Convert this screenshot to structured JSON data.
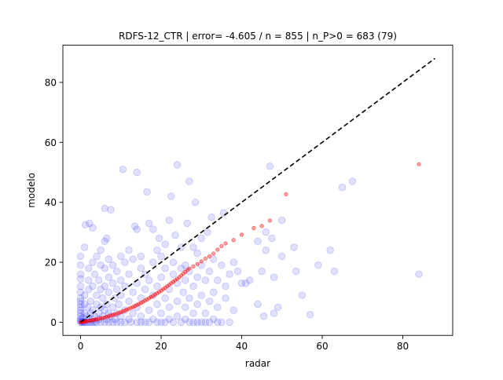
{
  "chart_data": {
    "type": "scatter",
    "title": "RDFS-12_CTR | error= -4.605 / n = 855 | n_P>0 = 683 (79)",
    "xlabel": "radar",
    "ylabel": "modelo",
    "xlim": [
      -4.4,
      92.4
    ],
    "ylim": [
      -4.4,
      92.4
    ],
    "xticks": [
      0,
      20,
      40,
      60,
      80
    ],
    "yticks": [
      0,
      20,
      40,
      60,
      80
    ],
    "grid": false,
    "legend": "none",
    "reference_line": {
      "x": [
        0,
        88
      ],
      "y": [
        0,
        88
      ],
      "color": "#000000",
      "style": "dashed"
    },
    "series": [
      {
        "color": "#0000ff",
        "alpha": 0.12,
        "marker": "circle",
        "points": [
          [
            0,
            0
          ],
          [
            0,
            0.5
          ],
          [
            0,
            1
          ],
          [
            0,
            2
          ],
          [
            0,
            3
          ],
          [
            0,
            4
          ],
          [
            0,
            5
          ],
          [
            0,
            6
          ],
          [
            0,
            7
          ],
          [
            0,
            8
          ],
          [
            0,
            10
          ],
          [
            0,
            12
          ],
          [
            0,
            14.5
          ],
          [
            0,
            16
          ],
          [
            0,
            19
          ],
          [
            0,
            22
          ],
          [
            0.3,
            0
          ],
          [
            0.5,
            0.2
          ],
          [
            0.6,
            1.5
          ],
          [
            0.8,
            0
          ],
          [
            1,
            0
          ],
          [
            1,
            3
          ],
          [
            1,
            6
          ],
          [
            1,
            9
          ],
          [
            1,
            25
          ],
          [
            1.2,
            32.5
          ],
          [
            1.5,
            0
          ],
          [
            1.5,
            2
          ],
          [
            1.8,
            5
          ],
          [
            2,
            0
          ],
          [
            2,
            1
          ],
          [
            2,
            11
          ],
          [
            2,
            14
          ],
          [
            2,
            18
          ],
          [
            2.2,
            33
          ],
          [
            2.5,
            0
          ],
          [
            2.5,
            3
          ],
          [
            2.5,
            7
          ],
          [
            3,
            0
          ],
          [
            3,
            1
          ],
          [
            3,
            4
          ],
          [
            3,
            12
          ],
          [
            3,
            20
          ],
          [
            3,
            31.5
          ],
          [
            3.5,
            0
          ],
          [
            3.5,
            2
          ],
          [
            3.5,
            16
          ],
          [
            4,
            0
          ],
          [
            4,
            6
          ],
          [
            4,
            9
          ],
          [
            4,
            22
          ],
          [
            4.5,
            1
          ],
          [
            4.5,
            3
          ],
          [
            4.5,
            14
          ],
          [
            5,
            0
          ],
          [
            5,
            5
          ],
          [
            5,
            11
          ],
          [
            5,
            19
          ],
          [
            5,
            24
          ],
          [
            5.5,
            2
          ],
          [
            5.5,
            8
          ],
          [
            6,
            0
          ],
          [
            6,
            4
          ],
          [
            6,
            12
          ],
          [
            6,
            18
          ],
          [
            6,
            27
          ],
          [
            6,
            38
          ],
          [
            6.5,
            1
          ],
          [
            6.5,
            6
          ],
          [
            6.5,
            28
          ],
          [
            7,
            0
          ],
          [
            7,
            3
          ],
          [
            7,
            10
          ],
          [
            7,
            15
          ],
          [
            7,
            21
          ],
          [
            7.5,
            37.5
          ],
          [
            7.5,
            2
          ],
          [
            8,
            0
          ],
          [
            8,
            5
          ],
          [
            8,
            13
          ],
          [
            8,
            19
          ],
          [
            8.5,
            8
          ],
          [
            8.5,
            1
          ],
          [
            9,
            0
          ],
          [
            9,
            3
          ],
          [
            9,
            11
          ],
          [
            9,
            17
          ],
          [
            9.5,
            6
          ],
          [
            10,
            0
          ],
          [
            10,
            2
          ],
          [
            10,
            9
          ],
          [
            10,
            14
          ],
          [
            10,
            22
          ],
          [
            10.5,
            51
          ],
          [
            11,
            0
          ],
          [
            11,
            4
          ],
          [
            11,
            12
          ],
          [
            11,
            20
          ],
          [
            12,
            1
          ],
          [
            12,
            7
          ],
          [
            12,
            16
          ],
          [
            12,
            24
          ],
          [
            12.5,
            0
          ],
          [
            13,
            3
          ],
          [
            13,
            10
          ],
          [
            13,
            21
          ],
          [
            13.5,
            32
          ],
          [
            14,
            0
          ],
          [
            14,
            5
          ],
          [
            14,
            13
          ],
          [
            14,
            31
          ],
          [
            14,
            50
          ],
          [
            15,
            0
          ],
          [
            15,
            2
          ],
          [
            15,
            8
          ],
          [
            15,
            18
          ],
          [
            15,
            22
          ],
          [
            16,
            0
          ],
          [
            16,
            11
          ],
          [
            16,
            16
          ],
          [
            16.5,
            43.5
          ],
          [
            17,
            0
          ],
          [
            17,
            4
          ],
          [
            17,
            14
          ],
          [
            17,
            33
          ],
          [
            18,
            1
          ],
          [
            18,
            9
          ],
          [
            18,
            20
          ],
          [
            18,
            31
          ],
          [
            19,
            0
          ],
          [
            19,
            6
          ],
          [
            19,
            12
          ],
          [
            19,
            24
          ],
          [
            19.5,
            28
          ],
          [
            20,
            0
          ],
          [
            20,
            3
          ],
          [
            20,
            15
          ],
          [
            20,
            22
          ],
          [
            21,
            0
          ],
          [
            21,
            8
          ],
          [
            21,
            18
          ],
          [
            21,
            26
          ],
          [
            22,
            1
          ],
          [
            22,
            5
          ],
          [
            22,
            11
          ],
          [
            22,
            34
          ],
          [
            22.5,
            42
          ],
          [
            23,
            0
          ],
          [
            23,
            16
          ],
          [
            23,
            20
          ],
          [
            23.5,
            29
          ],
          [
            24,
            2
          ],
          [
            24,
            7
          ],
          [
            24,
            13
          ],
          [
            24,
            52.5
          ],
          [
            25,
            0
          ],
          [
            25,
            18
          ],
          [
            25,
            25
          ],
          [
            25.5,
            10
          ],
          [
            26,
            1
          ],
          [
            26,
            5
          ],
          [
            26,
            14
          ],
          [
            26,
            19
          ],
          [
            26.5,
            33
          ],
          [
            27,
            0
          ],
          [
            27,
            8
          ],
          [
            27,
            17
          ],
          [
            27,
            47
          ],
          [
            28,
            0
          ],
          [
            28,
            3
          ],
          [
            28,
            12
          ],
          [
            28,
            25
          ],
          [
            28.5,
            40
          ],
          [
            29,
            0
          ],
          [
            29,
            6
          ],
          [
            29,
            15
          ],
          [
            29,
            23
          ],
          [
            30,
            0
          ],
          [
            30,
            9
          ],
          [
            30,
            19
          ],
          [
            30,
            28
          ],
          [
            31,
            0
          ],
          [
            31,
            3
          ],
          [
            31,
            14
          ],
          [
            31.5,
            30
          ],
          [
            32,
            0
          ],
          [
            32,
            7
          ],
          [
            32,
            17
          ],
          [
            32.5,
            35
          ],
          [
            33,
            1
          ],
          [
            33,
            10
          ],
          [
            33,
            21
          ],
          [
            34,
            0
          ],
          [
            34,
            5
          ],
          [
            34,
            14
          ],
          [
            35,
            0
          ],
          [
            35,
            19
          ],
          [
            35.5,
            36.5
          ],
          [
            36,
            8
          ],
          [
            36,
            12
          ],
          [
            37,
            0
          ],
          [
            37,
            16
          ],
          [
            38,
            4
          ],
          [
            38,
            20
          ],
          [
            39,
            17
          ],
          [
            40,
            13
          ],
          [
            41,
            13
          ],
          [
            42,
            14
          ],
          [
            44,
            6
          ],
          [
            44,
            27
          ],
          [
            45,
            17
          ],
          [
            45.5,
            2
          ],
          [
            46,
            30
          ],
          [
            46,
            24
          ],
          [
            47,
            52
          ],
          [
            47.5,
            28
          ],
          [
            48,
            15
          ],
          [
            48,
            3
          ],
          [
            49,
            5
          ],
          [
            50,
            22
          ],
          [
            50,
            34
          ],
          [
            53,
            25
          ],
          [
            53.5,
            17
          ],
          [
            55,
            9
          ],
          [
            57,
            2.5
          ],
          [
            59,
            19
          ],
          [
            62,
            24
          ],
          [
            63,
            17
          ],
          [
            65,
            45
          ],
          [
            67.5,
            47
          ],
          [
            84,
            16
          ]
        ]
      },
      {
        "color": "#ff0000",
        "alpha": 0.35,
        "marker": "circle-small",
        "points": [
          [
            0,
            0
          ],
          [
            0.2,
            0.05
          ],
          [
            0.4,
            0.1
          ],
          [
            0.6,
            0.15
          ],
          [
            0.8,
            0.2
          ],
          [
            1,
            0.25
          ],
          [
            1.3,
            0.3
          ],
          [
            1.6,
            0.35
          ],
          [
            2,
            0.45
          ],
          [
            2.4,
            0.55
          ],
          [
            2.8,
            0.65
          ],
          [
            3.2,
            0.75
          ],
          [
            3.6,
            0.85
          ],
          [
            4,
            0.95
          ],
          [
            4.5,
            1.1
          ],
          [
            5,
            1.25
          ],
          [
            5.5,
            1.4
          ],
          [
            6,
            1.6
          ],
          [
            6.5,
            1.8
          ],
          [
            7,
            2.0
          ],
          [
            7.5,
            2.2
          ],
          [
            8,
            2.4
          ],
          [
            8.5,
            2.6
          ],
          [
            9,
            2.85
          ],
          [
            9.5,
            3.1
          ],
          [
            10,
            3.35
          ],
          [
            10.5,
            3.6
          ],
          [
            11,
            3.9
          ],
          [
            11.5,
            4.2
          ],
          [
            12,
            4.5
          ],
          [
            12.5,
            4.8
          ],
          [
            13,
            5.1
          ],
          [
            13.5,
            5.4
          ],
          [
            14,
            5.75
          ],
          [
            14.5,
            6.1
          ],
          [
            15,
            6.45
          ],
          [
            15.5,
            6.8
          ],
          [
            16,
            7.2
          ],
          [
            16.5,
            7.6
          ],
          [
            17,
            8.0
          ],
          [
            17.5,
            8.4
          ],
          [
            18,
            8.8
          ],
          [
            18.5,
            9.2
          ],
          [
            19,
            9.65
          ],
          [
            19.5,
            10.1
          ],
          [
            20,
            10.55
          ],
          [
            20.5,
            11.0
          ],
          [
            21,
            11.5
          ],
          [
            21.5,
            12.0
          ],
          [
            22,
            12.5
          ],
          [
            22.5,
            13.0
          ],
          [
            23,
            13.5
          ],
          [
            23.5,
            14.0
          ],
          [
            24,
            14.5
          ],
          [
            24.5,
            15.0
          ],
          [
            25,
            15.6
          ],
          [
            25.5,
            16.2
          ],
          [
            26,
            16.8
          ],
          [
            26.5,
            17.4
          ],
          [
            27,
            17.9
          ],
          [
            28,
            18.6
          ],
          [
            29,
            19.4
          ],
          [
            30,
            20.3
          ],
          [
            31,
            21.2
          ],
          [
            32,
            22.0
          ],
          [
            33,
            22.9
          ],
          [
            34,
            24.2
          ],
          [
            35,
            25.4
          ],
          [
            36,
            26.3
          ],
          [
            38,
            27.4
          ],
          [
            40,
            29.2
          ],
          [
            43,
            31.4
          ],
          [
            45,
            32.1
          ],
          [
            47,
            33.9
          ],
          [
            51,
            42.7
          ],
          [
            84,
            52.7
          ]
        ]
      }
    ]
  }
}
